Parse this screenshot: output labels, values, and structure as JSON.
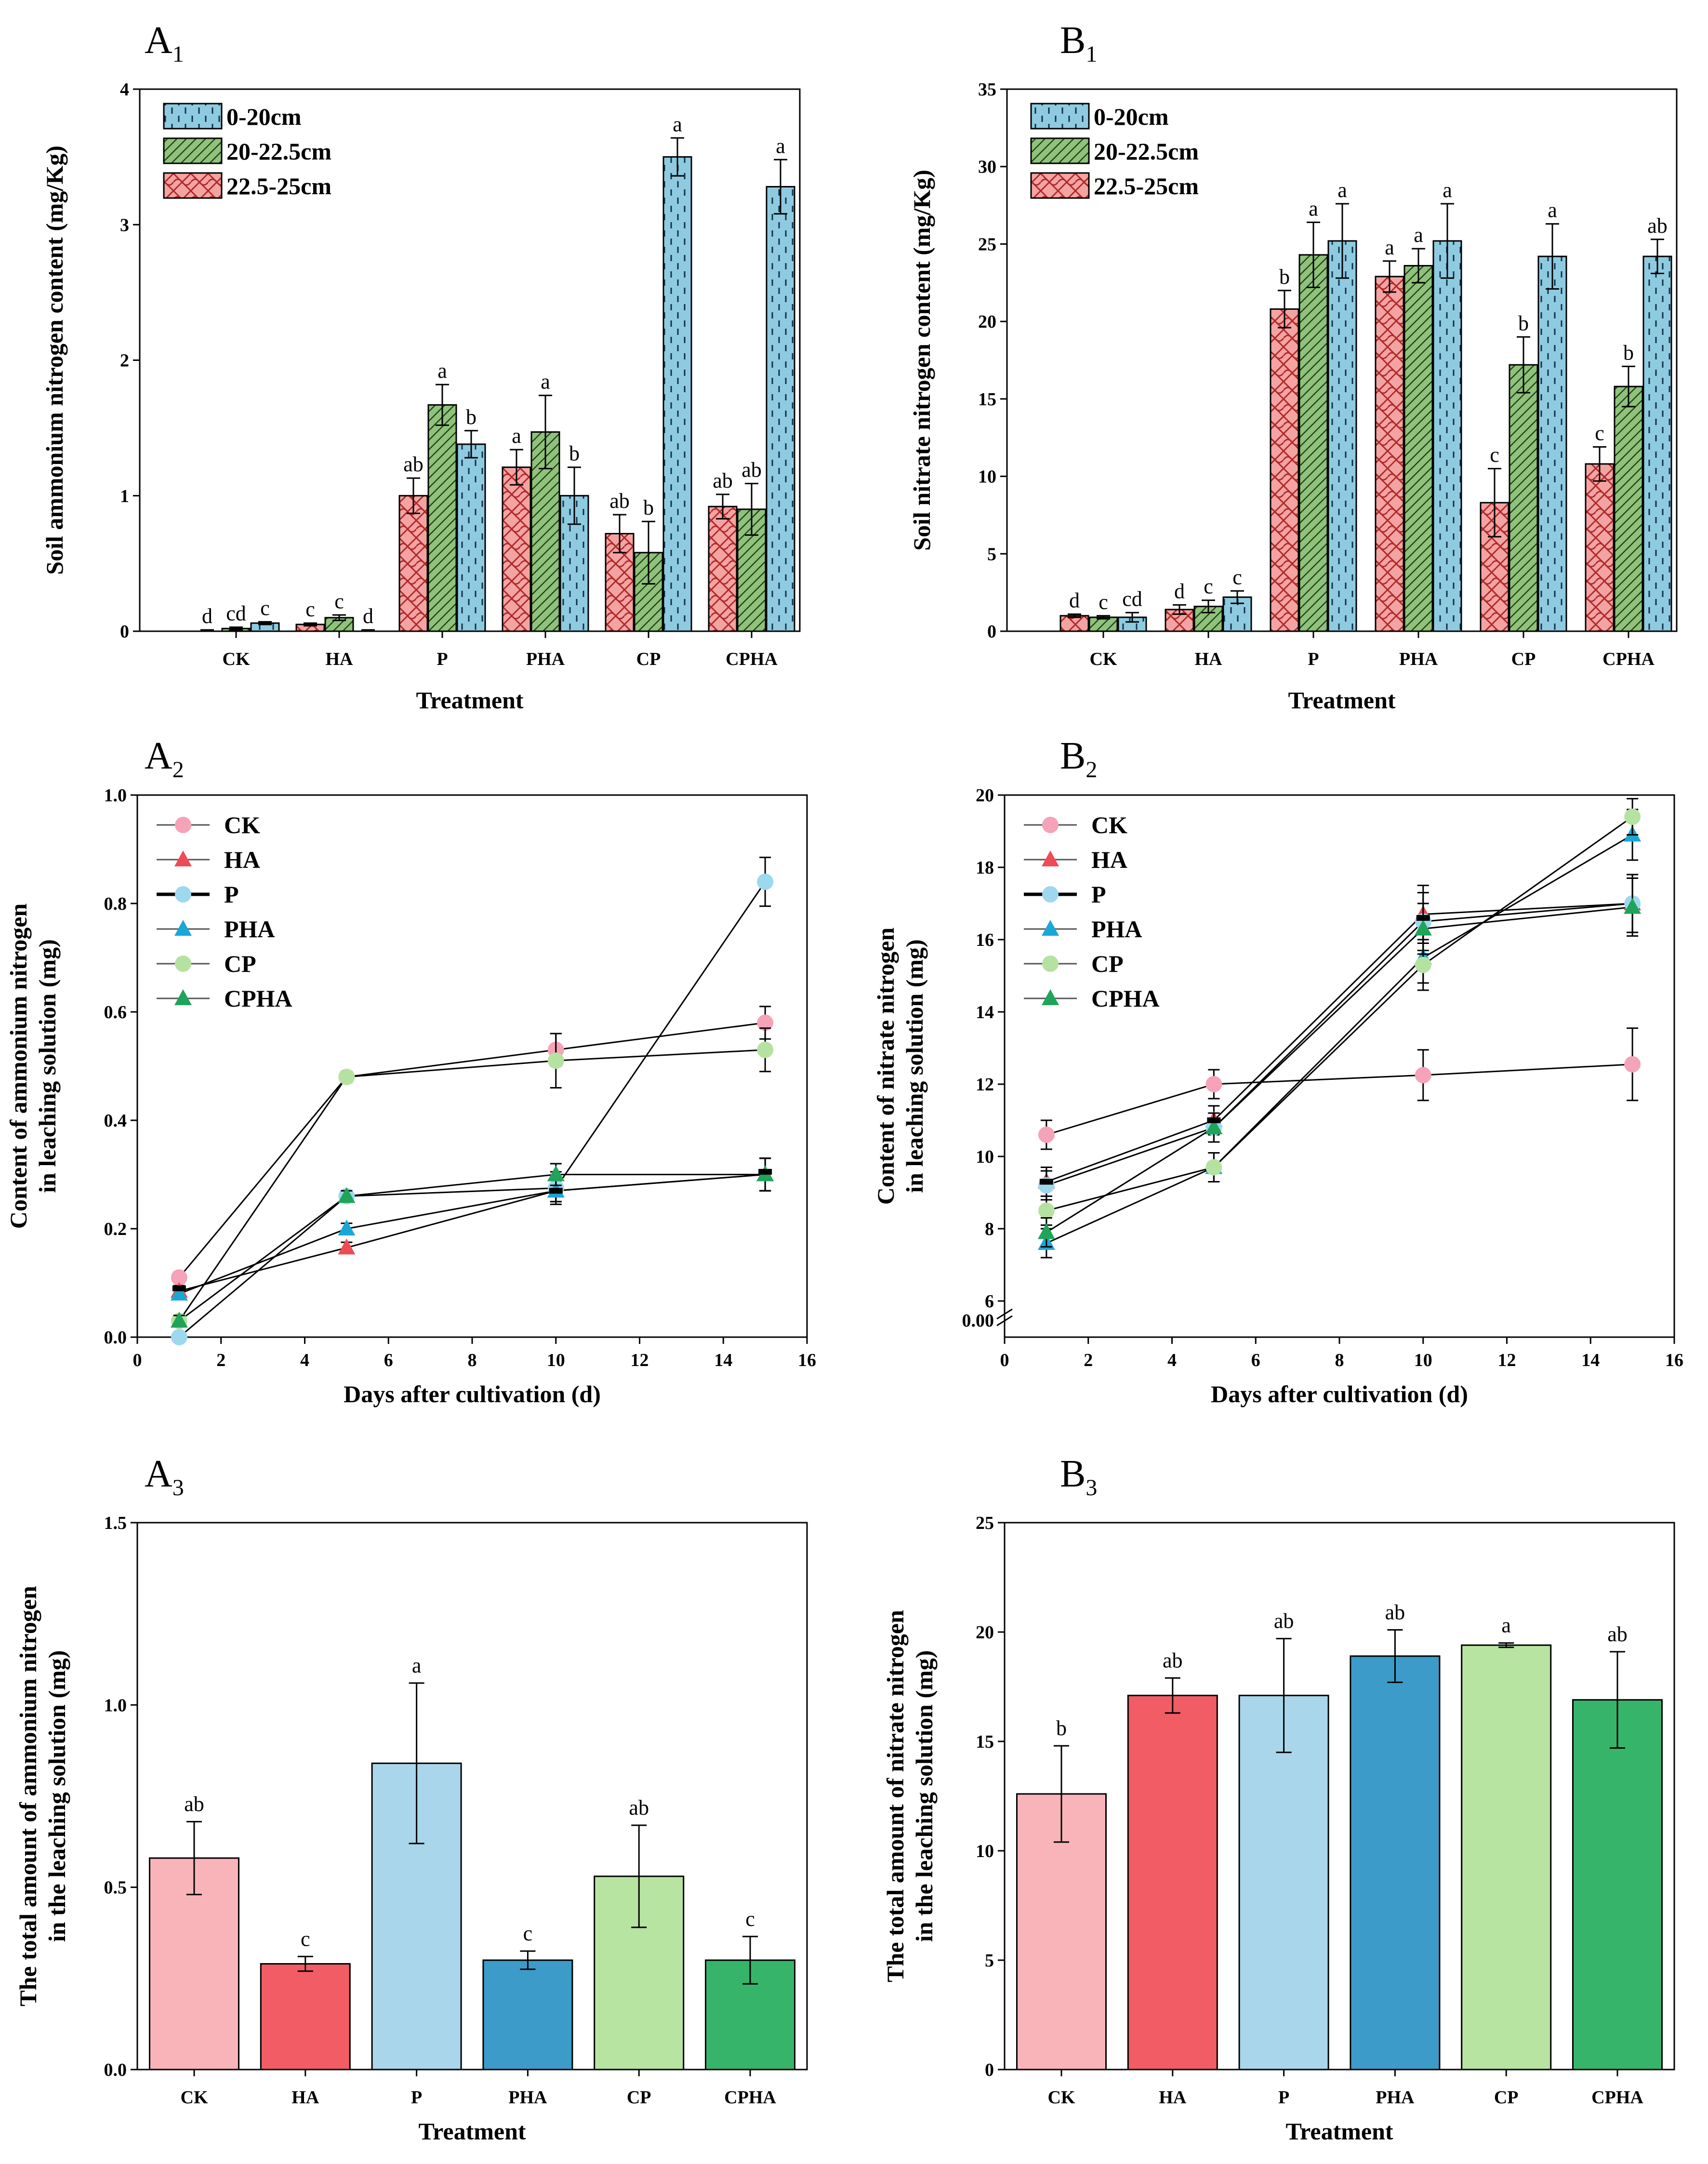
{
  "chart_data": [
    {
      "panel": "A1",
      "panel_label": "A",
      "panel_sub": "1",
      "type": "bar",
      "xlabel": "Treatment",
      "ylabel": "Soil ammonium nitrogen content (mg/Kg)",
      "ylim": [
        0,
        4
      ],
      "yticks": [
        0,
        1,
        2,
        3,
        4
      ],
      "ytick_labels": [
        "0",
        "1",
        "2",
        "3",
        "4"
      ],
      "categories": [
        "CK",
        "HA",
        "P",
        "PHA",
        "CP",
        "CPHA"
      ],
      "legend_position": "top-left",
      "series": [
        {
          "name": "22.5-25cm",
          "color": "#f4a3a3",
          "pattern": "crosshatch",
          "values": [
            0.0,
            0.05,
            1.0,
            1.21,
            0.72,
            0.92
          ],
          "errors": [
            0.01,
            0.01,
            0.13,
            0.13,
            0.14,
            0.09
          ],
          "letters": [
            "d",
            "c",
            "ab",
            "a",
            "ab",
            "ab"
          ]
        },
        {
          "name": "20-22.5cm",
          "color": "#8fc27a",
          "pattern": "diagonal",
          "values": [
            0.02,
            0.1,
            1.67,
            1.47,
            0.58,
            0.9
          ],
          "errors": [
            0.01,
            0.02,
            0.15,
            0.27,
            0.23,
            0.19
          ],
          "letters": [
            "cd",
            "c",
            "a",
            "a",
            "b",
            "ab"
          ]
        },
        {
          "name": "0-20cm",
          "color": "#8fcbe0",
          "pattern": "dashes",
          "values": [
            0.06,
            0.0,
            1.38,
            1.0,
            3.5,
            3.28
          ],
          "errors": [
            0.01,
            0.01,
            0.1,
            0.21,
            0.14,
            0.2
          ],
          "letters": [
            "c",
            "d",
            "b",
            "b",
            "a",
            "a"
          ]
        }
      ]
    },
    {
      "panel": "B1",
      "panel_label": "B",
      "panel_sub": "1",
      "type": "bar",
      "xlabel": "Treatment",
      "ylabel": "Soil nitrate nitrogen content (mg/Kg)",
      "ylim": [
        0,
        35
      ],
      "yticks": [
        0,
        5,
        10,
        15,
        20,
        25,
        30,
        35
      ],
      "ytick_labels": [
        "0",
        "5",
        "10",
        "15",
        "20",
        "25",
        "30",
        "35"
      ],
      "categories": [
        "CK",
        "HA",
        "P",
        "PHA",
        "CP",
        "CPHA"
      ],
      "legend_position": "top-left",
      "series": [
        {
          "name": "22.5-25cm",
          "color": "#f4a3a3",
          "pattern": "crosshatch",
          "values": [
            1.0,
            1.4,
            20.8,
            22.9,
            8.3,
            10.8
          ],
          "errors": [
            0.1,
            0.3,
            1.2,
            1.0,
            2.2,
            1.1
          ],
          "letters": [
            "d",
            "d",
            "b",
            "a",
            "c",
            "c"
          ]
        },
        {
          "name": "20-22.5cm",
          "color": "#8fc27a",
          "pattern": "diagonal",
          "values": [
            0.9,
            1.6,
            24.3,
            23.6,
            17.2,
            15.8
          ],
          "errors": [
            0.1,
            0.4,
            2.1,
            1.1,
            1.8,
            1.3
          ],
          "letters": [
            "c",
            "c",
            "a",
            "a",
            "b",
            "b"
          ]
        },
        {
          "name": "0-20cm",
          "color": "#8fcbe0",
          "pattern": "dashes",
          "values": [
            0.9,
            2.2,
            25.2,
            25.2,
            24.2,
            24.2
          ],
          "errors": [
            0.3,
            0.4,
            2.4,
            2.4,
            2.1,
            1.1
          ],
          "letters": [
            "cd",
            "c",
            "a",
            "a",
            "a",
            "ab"
          ]
        }
      ]
    },
    {
      "panel": "A2",
      "panel_label": "A",
      "panel_sub": "2",
      "type": "line",
      "xlabel": "Days after cultivation (d)",
      "ylabel_line1": "Content of ammonium nitrogen",
      "ylabel_line2": "in leaching solution (mg)",
      "xlim": [
        0,
        16
      ],
      "ylim": [
        0,
        1.0
      ],
      "xticks": [
        0,
        2,
        4,
        6,
        8,
        10,
        12,
        14,
        16
      ],
      "xtick_labels": [
        "0",
        "2",
        "4",
        "6",
        "8",
        "10",
        "12",
        "14",
        "16"
      ],
      "yticks": [
        0,
        0.2,
        0.4,
        0.6,
        0.8,
        1.0
      ],
      "ytick_labels": [
        "0.0",
        "0.2",
        "0.4",
        "0.6",
        "0.8",
        "1.0"
      ],
      "x": [
        1,
        5,
        10,
        15
      ],
      "legend_position": "top-left",
      "series": [
        {
          "name": "CK",
          "color": "#f4a3b8",
          "marker": "circle",
          "values": [
            0.11,
            0.48,
            0.53,
            0.58
          ],
          "errors": [
            0.01,
            0.01,
            0.03,
            0.03
          ]
        },
        {
          "name": "HA",
          "color": "#ef4b57",
          "marker": "triangle",
          "values": [
            0.085,
            0.165,
            0.27,
            0.3
          ],
          "errors": [
            0.01,
            0.01,
            0.02,
            0.03
          ]
        },
        {
          "name": "P",
          "color": "#9dd8ee",
          "marker": "circle",
          "values": [
            0.0,
            0.26,
            0.275,
            0.84
          ],
          "errors": [
            0.005,
            0.01,
            0.03,
            0.045
          ]
        },
        {
          "name": "PHA",
          "color": "#1aa7d6",
          "marker": "triangle",
          "values": [
            0.08,
            0.2,
            0.27,
            0.3
          ],
          "errors": [
            0.01,
            0.01,
            0.02,
            0.03
          ]
        },
        {
          "name": "CP",
          "color": "#b6e2a1",
          "marker": "circle",
          "values": [
            0.03,
            0.48,
            0.51,
            0.53
          ],
          "errors": [
            0.01,
            0.01,
            0.05,
            0.04
          ]
        },
        {
          "name": "CPHA",
          "color": "#1fa45a",
          "marker": "triangle",
          "values": [
            0.03,
            0.26,
            0.3,
            0.3
          ],
          "errors": [
            0.01,
            0.01,
            0.02,
            0.03
          ]
        }
      ],
      "black_markers": [
        [
          1,
          0.09
        ],
        [
          10,
          0.27
        ],
        [
          15,
          0.305
        ]
      ]
    },
    {
      "panel": "B2",
      "panel_label": "B",
      "panel_sub": "2",
      "type": "line",
      "xlabel": "Days after cultivation (d)",
      "ylabel_line1": "Content of nitrate nitrogen",
      "ylabel_line2": "in leaching solution (mg)",
      "xlim": [
        0,
        16
      ],
      "ylim": [
        5,
        20
      ],
      "axis_break_label": "0.00",
      "xticks": [
        0,
        2,
        4,
        6,
        8,
        10,
        12,
        14,
        16
      ],
      "xtick_labels": [
        "0",
        "2",
        "4",
        "6",
        "8",
        "10",
        "12",
        "14",
        "16"
      ],
      "yticks": [
        6,
        8,
        10,
        12,
        14,
        16,
        18,
        20
      ],
      "ytick_labels": [
        "6",
        "8",
        "10",
        "12",
        "14",
        "16",
        "18",
        "20"
      ],
      "x": [
        1,
        5,
        10,
        15
      ],
      "legend_position": "top-left",
      "series": [
        {
          "name": "CK",
          "color": "#f4a3b8",
          "marker": "circle",
          "values": [
            10.6,
            12.0,
            12.25,
            12.55
          ],
          "errors": [
            0.4,
            0.4,
            0.7,
            1.0
          ]
        },
        {
          "name": "HA",
          "color": "#ef4b57",
          "marker": "triangle",
          "values": [
            9.3,
            11.0,
            16.7,
            17.0
          ],
          "errors": [
            0.4,
            0.4,
            0.8,
            0.8
          ]
        },
        {
          "name": "P",
          "color": "#9dd8ee",
          "marker": "circle",
          "values": [
            9.2,
            10.8,
            16.5,
            17.0
          ],
          "errors": [
            0.4,
            0.4,
            0.8,
            0.8
          ]
        },
        {
          "name": "PHA",
          "color": "#1aa7d6",
          "marker": "triangle",
          "values": [
            7.6,
            9.7,
            15.5,
            18.9
          ],
          "errors": [
            0.4,
            0.4,
            0.7,
            0.7
          ]
        },
        {
          "name": "CP",
          "color": "#b6e2a1",
          "marker": "circle",
          "values": [
            8.5,
            9.7,
            15.3,
            19.4
          ],
          "errors": [
            0.4,
            0.4,
            0.7,
            0.5
          ]
        },
        {
          "name": "CPHA",
          "color": "#1fa45a",
          "marker": "triangle",
          "values": [
            7.9,
            10.8,
            16.3,
            16.9
          ],
          "errors": [
            0.4,
            0.4,
            0.7,
            0.8
          ]
        }
      ],
      "black_markers": [
        [
          1,
          9.3
        ],
        [
          5,
          11.0
        ],
        [
          10,
          16.6
        ]
      ]
    },
    {
      "panel": "A3",
      "panel_label": "A",
      "panel_sub": "3",
      "type": "bar",
      "xlabel": "Treatment",
      "ylabel_line1": "The total amount of ammonium nitrogen",
      "ylabel_line2": "in the leaching solution (mg)",
      "ylim": [
        0,
        1.5
      ],
      "yticks": [
        0,
        0.5,
        1.0,
        1.5
      ],
      "ytick_labels": [
        "0.0",
        "0.5",
        "1.0",
        "1.5"
      ],
      "categories": [
        "CK",
        "HA",
        "P",
        "PHA",
        "CP",
        "CPHA"
      ],
      "values": [
        0.58,
        0.29,
        0.84,
        0.3,
        0.53,
        0.3
      ],
      "errors": [
        0.1,
        0.02,
        0.22,
        0.025,
        0.14,
        0.065
      ],
      "letters": [
        "ab",
        "c",
        "a",
        "c",
        "ab",
        "c"
      ],
      "colors": [
        "#f9b4b9",
        "#f25c65",
        "#a9d6ea",
        "#3d9bc9",
        "#b7e4a1",
        "#36b56a"
      ]
    },
    {
      "panel": "B3",
      "panel_label": "B",
      "panel_sub": "3",
      "type": "bar",
      "xlabel": "Treatment",
      "ylabel_line1": "The total amount of nitrate nitrogen",
      "ylabel_line2": "in the leaching solution (mg)",
      "ylim": [
        0,
        25
      ],
      "yticks": [
        0,
        5,
        10,
        15,
        20,
        25
      ],
      "ytick_labels": [
        "0",
        "5",
        "10",
        "15",
        "20",
        "25"
      ],
      "categories": [
        "CK",
        "HA",
        "P",
        "PHA",
        "CP",
        "CPHA"
      ],
      "values": [
        12.6,
        17.1,
        17.1,
        18.9,
        19.4,
        16.9
      ],
      "errors": [
        2.2,
        0.8,
        2.6,
        1.2,
        0.1,
        2.2
      ],
      "letters": [
        "b",
        "ab",
        "ab",
        "ab",
        "a",
        "ab"
      ],
      "colors": [
        "#f9b4b9",
        "#f25c65",
        "#a9d6ea",
        "#3d9bc9",
        "#b7e4a1",
        "#36b56a"
      ]
    }
  ]
}
